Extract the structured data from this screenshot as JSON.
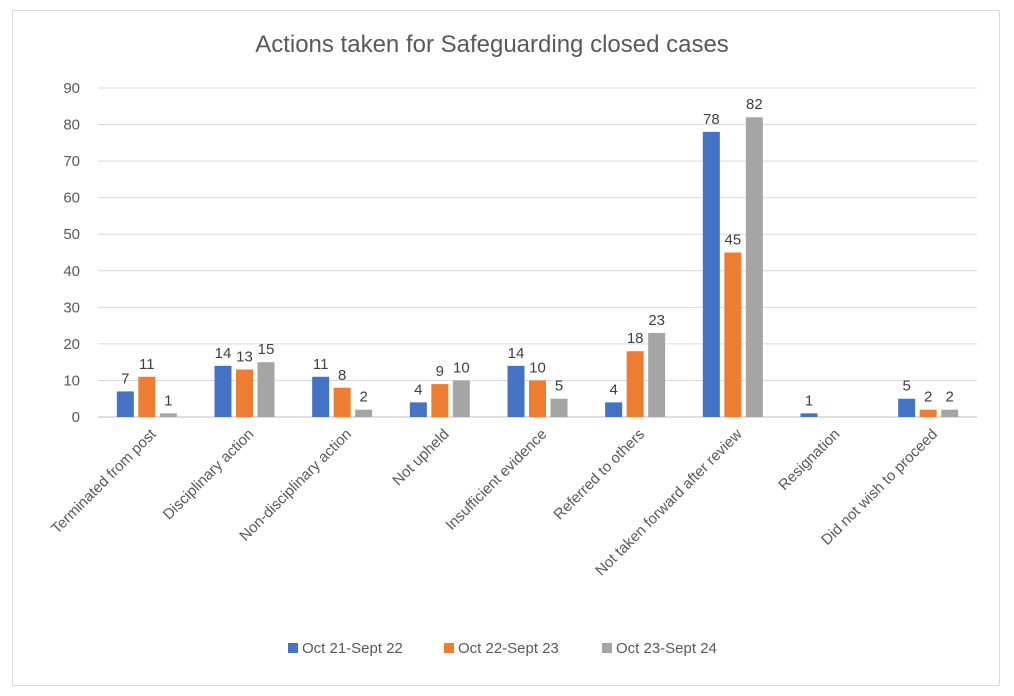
{
  "chart_data": {
    "type": "bar",
    "title": "Actions taken for Safeguarding closed cases",
    "xlabel": "",
    "ylabel": "",
    "ylim": [
      0,
      90
    ],
    "yticks": [
      0,
      10,
      20,
      30,
      40,
      50,
      60,
      70,
      80,
      90
    ],
    "grid": true,
    "legend_position": "bottom",
    "categories": [
      "Terminated from post",
      "Disciplinary  action",
      "Non-disciplinary action",
      "Not upheld",
      "Insufficient evidence",
      "Referred to others",
      "Not taken forward after  review",
      "Resignation",
      "Did not wish to proceed"
    ],
    "series": [
      {
        "name": "Oct 21-Sept 22",
        "color": "#4472c4",
        "values": [
          7,
          14,
          11,
          4,
          14,
          4,
          78,
          1,
          5
        ]
      },
      {
        "name": "Oct 22-Sept 23",
        "color": "#ed7d31",
        "values": [
          11,
          13,
          8,
          9,
          10,
          18,
          45,
          null,
          2
        ]
      },
      {
        "name": "Oct 23-Sept 24",
        "color": "#a5a5a5",
        "values": [
          1,
          15,
          2,
          10,
          5,
          23,
          82,
          null,
          2
        ]
      }
    ]
  }
}
